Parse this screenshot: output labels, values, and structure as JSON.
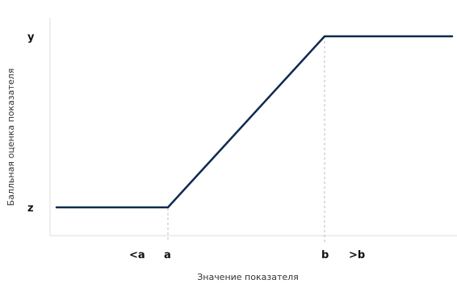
{
  "chart_data": {
    "type": "line",
    "title": "",
    "xlabel": "Значение показателя",
    "ylabel": "Балльная оценка показателя",
    "x_tick_labels": [
      "<a",
      "a",
      "b",
      ">b"
    ],
    "y_tick_labels": [
      "y",
      "z"
    ],
    "series": [
      {
        "color": "#0e2a4f",
        "points": [
          {
            "x": "<a",
            "y": "z"
          },
          {
            "x": "a",
            "y": "z"
          },
          {
            "x": "b",
            "y": "y"
          },
          {
            "x": ">b",
            "y": "y"
          }
        ]
      }
    ],
    "reference_lines": [
      "a",
      "b"
    ],
    "grid": false,
    "colors": {
      "line": "#0e2a4f",
      "axis": "#dddddd",
      "reference": "#bbbbbb"
    }
  }
}
